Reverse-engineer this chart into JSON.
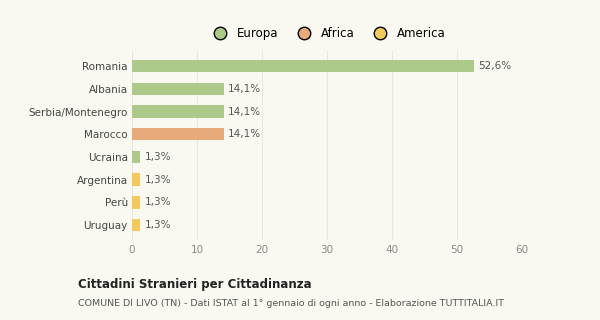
{
  "categories": [
    "Romania",
    "Albania",
    "Serbia/Montenegro",
    "Marocco",
    "Ucraina",
    "Argentina",
    "Perù",
    "Uruguay"
  ],
  "values": [
    52.6,
    14.1,
    14.1,
    14.1,
    1.3,
    1.3,
    1.3,
    1.3
  ],
  "labels": [
    "52,6%",
    "14,1%",
    "14,1%",
    "14,1%",
    "1,3%",
    "1,3%",
    "1,3%",
    "1,3%"
  ],
  "colors": [
    "#adc98a",
    "#adc98a",
    "#adc98a",
    "#e8aa7a",
    "#adc98a",
    "#f2c95c",
    "#f2c95c",
    "#f2c95c"
  ],
  "legend_labels": [
    "Europa",
    "Africa",
    "America"
  ],
  "legend_colors": [
    "#adc98a",
    "#e8aa7a",
    "#f2c95c"
  ],
  "xlim": [
    0,
    60
  ],
  "xticks": [
    0,
    10,
    20,
    30,
    40,
    50,
    60
  ],
  "title": "Cittadini Stranieri per Cittadinanza",
  "subtitle": "COMUNE DI LIVO (TN) - Dati ISTAT al 1° gennaio di ogni anno - Elaborazione TUTTITALIA.IT",
  "bg_color": "#f9f9f2",
  "grid_color": "#e8e8dc"
}
